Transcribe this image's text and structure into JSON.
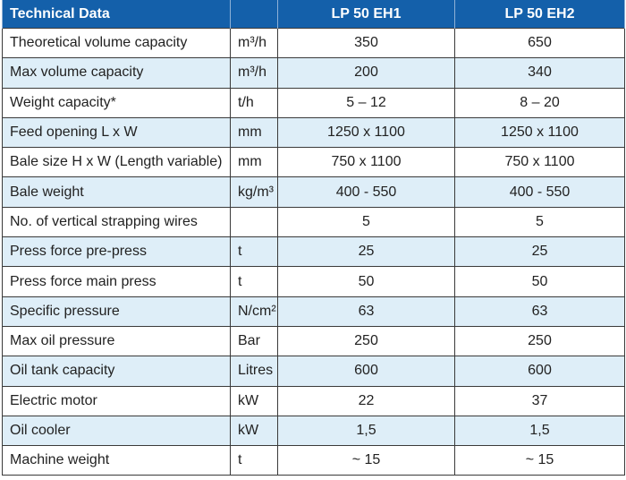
{
  "header": {
    "parameter": "Technical Data",
    "unit": "",
    "model_1": "LP 50 EH1",
    "model_2": "LP 50 EH2"
  },
  "rows": [
    {
      "parameter": "Theoretical volume capacity",
      "unit": "m³/h",
      "model_1": "350",
      "model_2": "650"
    },
    {
      "parameter": "Max volume capacity",
      "unit": "m³/h",
      "model_1": "200",
      "model_2": "340"
    },
    {
      "parameter": "Weight capacity*",
      "unit": "t/h",
      "model_1": "5 – 12",
      "model_2": "8 – 20"
    },
    {
      "parameter": "Feed opening L x W",
      "unit": "mm",
      "model_1": "1250 x 1100",
      "model_2": "1250 x 1100"
    },
    {
      "parameter": "Bale size H x W (Length variable)",
      "unit": "mm",
      "model_1": "750 x 1100",
      "model_2": "750 x 1100"
    },
    {
      "parameter": "Bale weight",
      "unit": "kg/m³",
      "model_1": "400 - 550",
      "model_2": "400 - 550"
    },
    {
      "parameter": "No. of vertical strapping wires",
      "unit": "",
      "model_1": "5",
      "model_2": "5"
    },
    {
      "parameter": "Press force pre-press",
      "unit": "t",
      "model_1": "25",
      "model_2": "25"
    },
    {
      "parameter": "Press force main press",
      "unit": "t",
      "model_1": "50",
      "model_2": "50"
    },
    {
      "parameter": "Specific pressure",
      "unit": "N/cm²",
      "model_1": "63",
      "model_2": "63"
    },
    {
      "parameter": "Max oil pressure",
      "unit": "Bar",
      "model_1": "250",
      "model_2": "250"
    },
    {
      "parameter": "Oil tank capacity",
      "unit": "Litres",
      "model_1": "600",
      "model_2": "600"
    },
    {
      "parameter": "Electric motor",
      "unit": "kW",
      "model_1": "22",
      "model_2": "37"
    },
    {
      "parameter": "Oil cooler",
      "unit": "kW",
      "model_1": "1,5",
      "model_2": "1,5"
    },
    {
      "parameter": "Machine weight",
      "unit": "t",
      "model_1": "~ 15",
      "model_2": "~ 15"
    }
  ],
  "colors": {
    "header_bg": "#1460aa",
    "header_text": "#ffffff",
    "alt_row_bg": "#deeef8",
    "border": "#3a3a3a"
  }
}
